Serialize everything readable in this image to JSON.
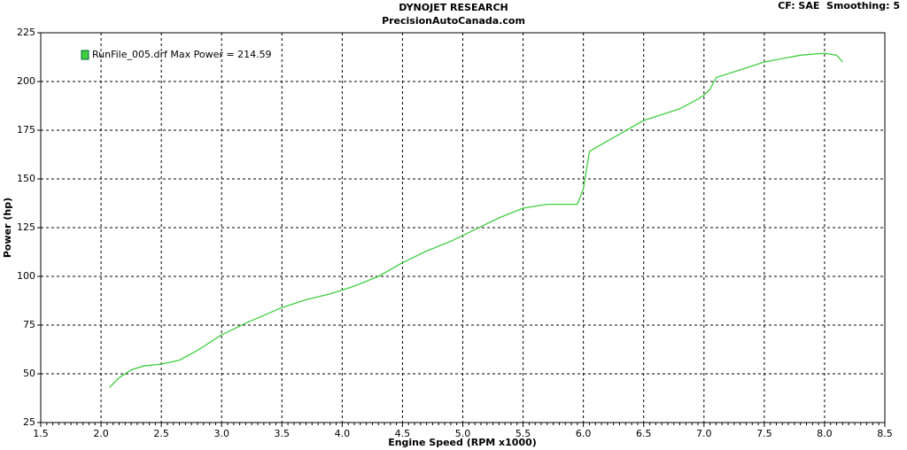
{
  "chart_data": {
    "type": "line",
    "title": "DYNOJET RESEARCH",
    "subtitle": "PrecisionAutoCanada.com",
    "annotation": "CF: SAE  Smoothing: 5",
    "xlabel": "Engine Speed (RPM x1000)",
    "ylabel": "Power (hp)",
    "x": [
      2.07,
      2.15,
      2.25,
      2.35,
      2.5,
      2.65,
      2.8,
      3.0,
      3.2,
      3.5,
      3.7,
      3.9,
      4.1,
      4.3,
      4.5,
      4.7,
      4.9,
      5.1,
      5.3,
      5.5,
      5.7,
      5.85,
      5.95,
      6.0,
      6.05,
      6.1,
      6.3,
      6.5,
      6.8,
      6.95,
      7.0,
      7.05,
      7.1,
      7.2,
      7.5,
      7.8,
      8.0,
      8.1,
      8.15
    ],
    "series": [
      {
        "name": "RunFile_005.drf Max Power = 214.59",
        "color": "#3fcf3f",
        "values": [
          43,
          48,
          52,
          54,
          55,
          57,
          62,
          70,
          76,
          84,
          88,
          91,
          95,
          100,
          107,
          113,
          118,
          124,
          130,
          135,
          137,
          137,
          137,
          145,
          164,
          166,
          173,
          180,
          186,
          191,
          193,
          196,
          202,
          204,
          210,
          213.5,
          214.5,
          213.5,
          210
        ]
      }
    ],
    "xlim": [
      1.5,
      8.5
    ],
    "xticks": [
      1.5,
      {
        "value": 2,
        "label": "2.0"
      },
      2.5,
      {
        "value": 3,
        "label": "3.0"
      },
      3.5,
      {
        "value": 4,
        "label": "4.0"
      },
      4.5,
      {
        "value": 5,
        "label": "5.0"
      },
      5.5,
      {
        "value": 6,
        "label": "6.0"
      },
      6.5,
      {
        "value": 7,
        "label": "7.0"
      },
      7.5,
      {
        "value": 8,
        "label": "8.0"
      },
      8.5
    ],
    "ylim": [
      25,
      225
    ],
    "yticks": [
      25,
      50,
      75,
      100,
      125,
      150,
      175,
      200,
      225
    ],
    "grid": true
  }
}
